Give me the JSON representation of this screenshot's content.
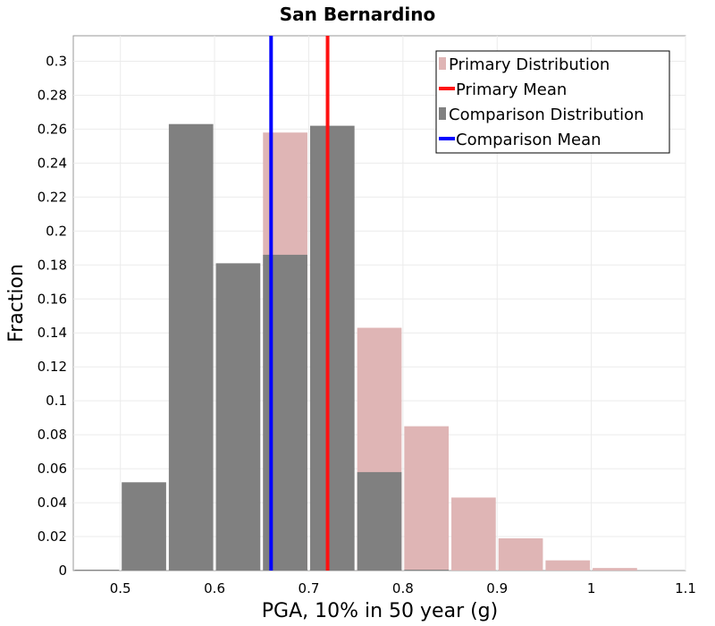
{
  "chart_data": {
    "type": "bar",
    "title": "San Bernardino",
    "xlabel": "PGA, 10% in 50 year (g)",
    "ylabel": "Fraction",
    "xlim": [
      0.45,
      1.1
    ],
    "ylim": [
      0,
      0.315
    ],
    "xticks": [
      0.5,
      0.6,
      0.7,
      0.8,
      0.9,
      1,
      1.1
    ],
    "xtick_labels": [
      "0.5",
      "0.6",
      "0.7",
      "0.8",
      "0.9",
      "1",
      "1.1"
    ],
    "yticks": [
      0,
      0.02,
      0.04,
      0.06,
      0.08,
      0.1,
      0.12,
      0.14,
      0.16,
      0.18,
      0.2,
      0.22,
      0.24,
      0.26,
      0.28,
      0.3
    ],
    "ytick_labels": [
      "0",
      "0.02",
      "0.04",
      "0.06",
      "0.08",
      "0.1",
      "0.12",
      "0.14",
      "0.16",
      "0.18",
      "0.2",
      "0.22",
      "0.24",
      "0.26",
      "0.28",
      "0.3"
    ],
    "grid": true,
    "legend_position": "top-right",
    "bin_width": 0.05,
    "series": [
      {
        "name": "Primary Distribution",
        "kind": "histogram",
        "color": "#dfb5b5",
        "bin_centers": [
          0.675,
          0.775,
          0.825,
          0.875,
          0.925,
          0.975,
          1.025
        ],
        "values": [
          0.258,
          0.143,
          0.085,
          0.043,
          0.019,
          0.006,
          0.0015
        ]
      },
      {
        "name": "Comparison Distribution",
        "kind": "histogram",
        "color": "#808080",
        "bin_centers": [
          0.475,
          0.525,
          0.575,
          0.625,
          0.675,
          0.725,
          0.775,
          0.825
        ],
        "values": [
          0.0005,
          0.052,
          0.263,
          0.181,
          0.186,
          0.262,
          0.058,
          0.0005
        ]
      },
      {
        "name": "Primary Mean",
        "kind": "vline",
        "color": "#ff1111",
        "x": 0.72
      },
      {
        "name": "Comparison Mean",
        "kind": "vline",
        "color": "#0000ff",
        "x": 0.66
      }
    ]
  }
}
